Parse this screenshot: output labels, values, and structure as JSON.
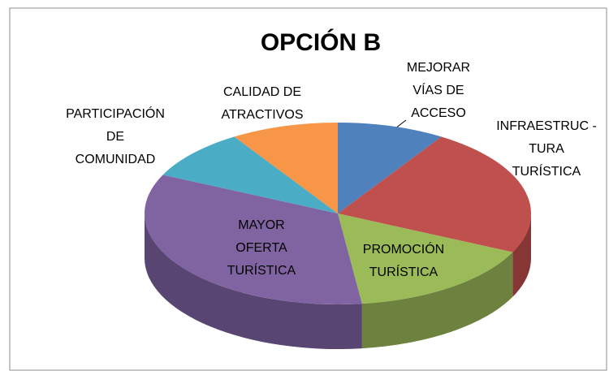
{
  "chart_data": {
    "type": "pie",
    "title": "OPCIÓN B",
    "categories": [
      "MEJORAR\nVÍAS DE\nACCESO",
      "INFRAESTRUC -\nTURA\nTURÍSTICA",
      "PROMOCIÓN\nTURÍSTICA",
      "MAYOR\nOFERTA\nTURÍSTICA",
      "PARTICIPACIÓN\nDE\nCOMUNIDAD",
      "CALIDAD DE\nATRACTIVOS"
    ],
    "values": [
      9,
      23,
      16,
      34,
      9,
      9
    ],
    "colors": [
      "#4f81bd",
      "#c0504d",
      "#9bbb59",
      "#8064a2",
      "#4bacc6",
      "#f79646"
    ]
  }
}
